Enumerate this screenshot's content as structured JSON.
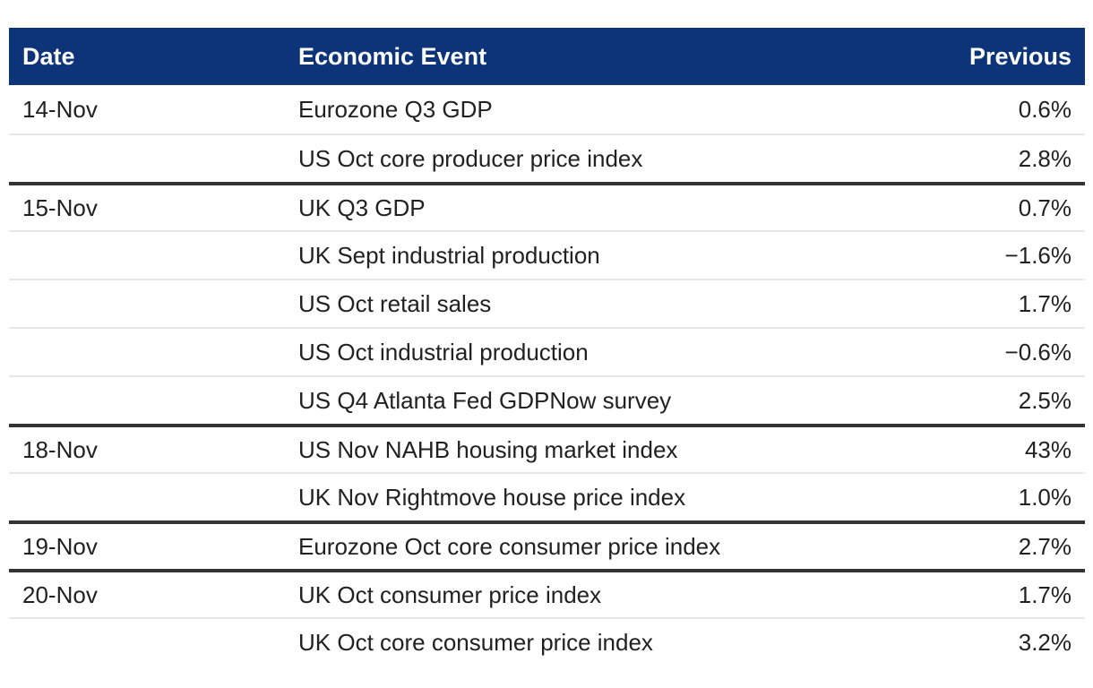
{
  "chart_data": {
    "type": "table",
    "columns": [
      "Date",
      "Economic Event",
      "Previous"
    ],
    "groups": [
      {
        "date": "14-Nov",
        "events": [
          {
            "event": "Eurozone Q3 GDP",
            "previous": "0.6%"
          },
          {
            "event": "US Oct core producer price index",
            "previous": "2.8%"
          }
        ]
      },
      {
        "date": "15-Nov",
        "events": [
          {
            "event": "UK Q3 GDP",
            "previous": "0.7%"
          },
          {
            "event": "UK Sept industrial production",
            "previous": "−1.6%"
          },
          {
            "event": "US Oct retail sales",
            "previous": "1.7%"
          },
          {
            "event": "US Oct industrial production",
            "previous": "−0.6%"
          },
          {
            "event": "US Q4 Atlanta Fed GDPNow survey",
            "previous": "2.5%"
          }
        ]
      },
      {
        "date": "18-Nov",
        "events": [
          {
            "event": "US Nov NAHB housing market index",
            "previous": "43%"
          },
          {
            "event": "UK Nov Rightmove house price index",
            "previous": "1.0%"
          }
        ]
      },
      {
        "date": "19-Nov",
        "events": [
          {
            "event": "Eurozone Oct core consumer price index",
            "previous": "2.7%"
          }
        ]
      },
      {
        "date": "20-Nov",
        "events": [
          {
            "event": "UK Oct consumer price index",
            "previous": "1.7%"
          },
          {
            "event": "UK Oct core consumer price index",
            "previous": "3.2%"
          }
        ]
      }
    ]
  },
  "colors": {
    "header_bg": "#0d3478",
    "header_text": "#ffffff",
    "body_text": "#212121",
    "thin_divider": "#e7e7e7",
    "thick_divider": "#333333"
  }
}
